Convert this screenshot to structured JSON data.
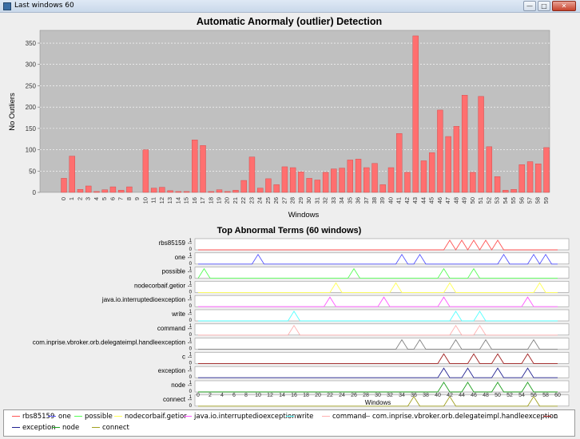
{
  "window": {
    "title": "Last windows 60",
    "minimize": "—",
    "maximize": "□",
    "close": "✕"
  },
  "colors": {
    "bar": "#ff6f6f",
    "plot_bg": "#c0c0c0",
    "panel_bg": "#eeeeee"
  },
  "chart_data": [
    {
      "type": "bar",
      "title": "Automatic Anormaly (outlier) Detection",
      "xlabel": "Windows",
      "ylabel": "No Outliers",
      "ylim": [
        0,
        380
      ],
      "yticks": [
        0,
        50,
        100,
        150,
        200,
        250,
        300,
        350
      ],
      "grid": true,
      "categories": [
        "0",
        "1",
        "2",
        "3",
        "4",
        "5",
        "6",
        "7",
        "8",
        "9",
        "10",
        "11",
        "12",
        "13",
        "14",
        "15",
        "16",
        "17",
        "18",
        "19",
        "20",
        "21",
        "22",
        "23",
        "24",
        "25",
        "26",
        "27",
        "28",
        "29",
        "30",
        "31",
        "32",
        "33",
        "34",
        "35",
        "36",
        "37",
        "38",
        "39",
        "40",
        "41",
        "42",
        "43",
        "44",
        "45",
        "46",
        "47",
        "48",
        "49",
        "50",
        "51",
        "52",
        "53",
        "54",
        "55",
        "56",
        "57",
        "58",
        "59"
      ],
      "values": [
        33,
        85,
        7,
        15,
        2,
        6,
        13,
        5,
        13,
        0,
        100,
        10,
        12,
        4,
        2,
        2,
        123,
        110,
        2,
        6,
        2,
        5,
        28,
        83,
        10,
        32,
        18,
        60,
        58,
        48,
        33,
        29,
        47,
        55,
        57,
        76,
        78,
        58,
        68,
        18,
        58,
        138,
        47,
        367,
        74,
        93,
        193,
        131,
        155,
        228,
        47,
        225,
        107,
        37,
        5,
        7,
        65,
        72,
        67,
        105
      ]
    },
    {
      "type": "line",
      "title": "Top Abnormal Terms (60 windows)",
      "xlabel": "Windows",
      "xlim": [
        0,
        60
      ],
      "xticks": [
        0,
        2,
        4,
        6,
        8,
        10,
        12,
        14,
        16,
        18,
        20,
        22,
        24,
        26,
        28,
        30,
        32,
        34,
        36,
        38,
        40,
        42,
        44,
        46,
        48,
        50,
        52,
        54,
        56,
        58,
        60
      ],
      "row_ticks": [
        "1",
        "0"
      ],
      "legend_position": "bottom",
      "series": [
        {
          "name": "rbs85159",
          "color": "#ff5555",
          "peaks": [
            42,
            44,
            46,
            48,
            50
          ]
        },
        {
          "name": "one",
          "color": "#5555ff",
          "peaks": [
            10,
            34,
            37,
            51,
            56,
            58
          ]
        },
        {
          "name": "possible",
          "color": "#55ff55",
          "peaks": [
            1,
            26,
            41,
            46
          ]
        },
        {
          "name": "nodecorbaif.getior",
          "color": "#ffff55",
          "peaks": [
            23,
            33,
            42,
            57
          ]
        },
        {
          "name": "java.io.interruptedioexception",
          "color": "#ff55ff",
          "peaks": [
            22,
            31,
            41,
            55
          ]
        },
        {
          "name": "write",
          "color": "#55ffff",
          "peaks": [
            16,
            43,
            47
          ]
        },
        {
          "name": "command",
          "color": "#ffafaf",
          "peaks": [
            16,
            43,
            47
          ]
        },
        {
          "name": "com.inprise.vbroker.orb.delegateimpl.handleexception",
          "color": "#808080",
          "peaks": [
            34,
            37,
            43,
            48,
            56
          ]
        },
        {
          "name": "c",
          "color": "#a02020",
          "peaks": [
            41,
            46,
            50,
            55
          ]
        },
        {
          "name": "exception",
          "color": "#202090",
          "peaks": [
            41,
            45,
            50,
            55
          ]
        },
        {
          "name": "node",
          "color": "#20a020",
          "peaks": [
            41,
            45,
            50,
            55
          ]
        },
        {
          "name": "connect",
          "color": "#a0a020",
          "peaks": [
            36,
            42,
            56
          ]
        }
      ]
    }
  ]
}
